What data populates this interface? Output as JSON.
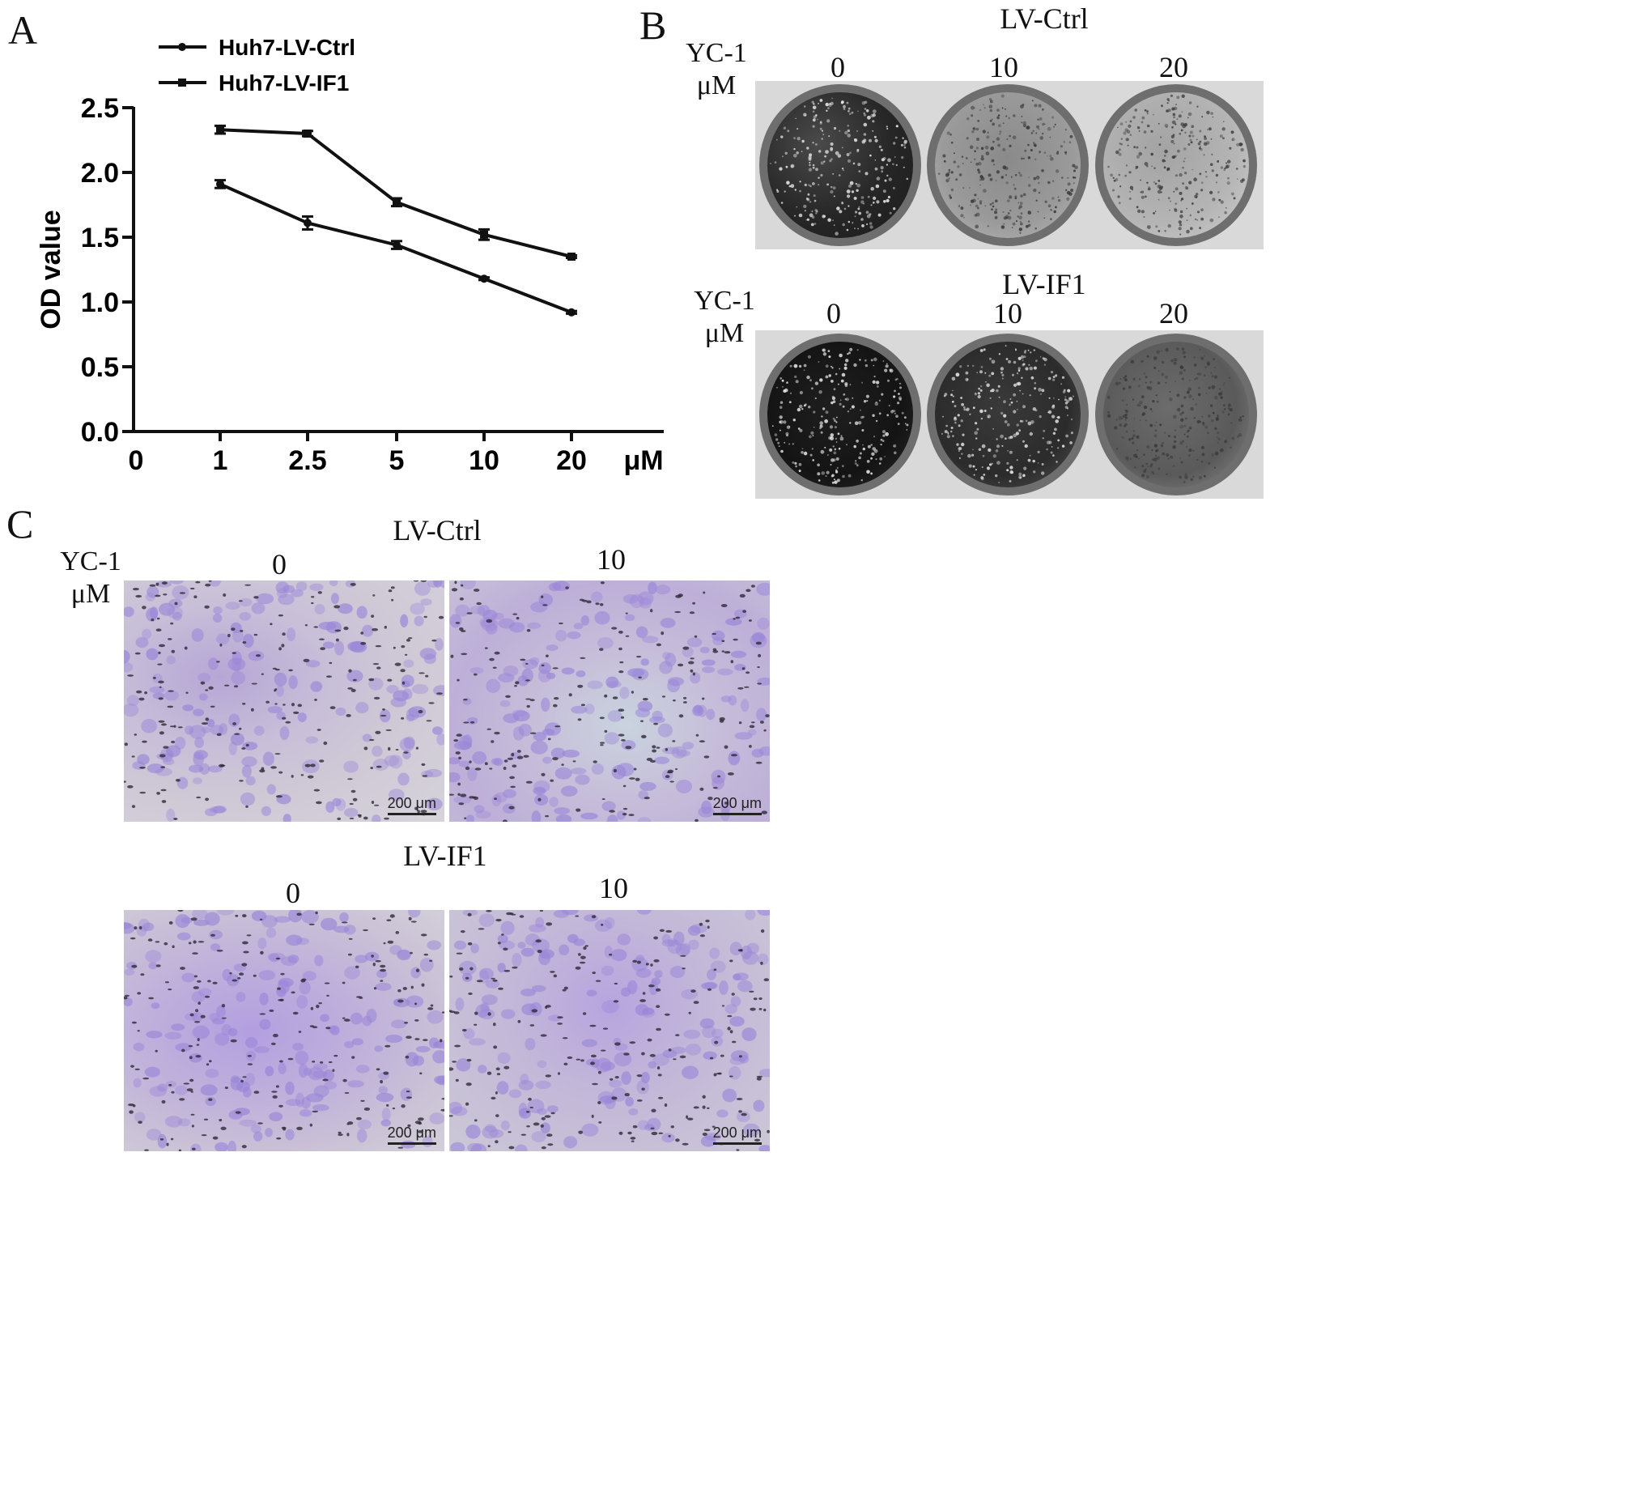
{
  "panel_letters": {
    "a": "A",
    "b": "B",
    "c": "C"
  },
  "chart_data": {
    "type": "line",
    "categories": [
      "0",
      "1",
      "2.5",
      "5",
      "10",
      "20"
    ],
    "x_unit": "μM",
    "ylabel": "OD value",
    "xlabel": "",
    "ylim": [
      0.0,
      2.5
    ],
    "yticks": [
      "0.0",
      "0.5",
      "1.0",
      "1.5",
      "2.0",
      "2.5"
    ],
    "series": [
      {
        "name": "Huh7-LV-Ctrl",
        "marker": "circle",
        "x": [
          "1",
          "2.5",
          "5",
          "10",
          "20"
        ],
        "values": [
          1.91,
          1.61,
          1.44,
          1.18,
          0.92
        ],
        "errors": [
          0.03,
          0.05,
          0.03,
          0.01,
          0.01
        ]
      },
      {
        "name": "Huh7-LV-IF1",
        "marker": "square",
        "x": [
          "1",
          "2.5",
          "5",
          "10",
          "20"
        ],
        "values": [
          2.33,
          2.3,
          1.77,
          1.52,
          1.35
        ],
        "errors": [
          0.03,
          0.02,
          0.03,
          0.04,
          0.01
        ]
      }
    ],
    "legend_position": "top-left",
    "grid": false
  },
  "panel_b": {
    "yc_label_line1": "YC-1",
    "yc_label_line2": "μM",
    "groups": [
      {
        "title": "LV-Ctrl",
        "doses": [
          "0",
          "10",
          "20"
        ]
      },
      {
        "title": "LV-IF1",
        "doses": [
          "0",
          "10",
          "20"
        ]
      }
    ]
  },
  "panel_c": {
    "yc_label_line1": "YC-1",
    "yc_label_line2": "μM",
    "scale_label": "200 μm",
    "groups": [
      {
        "title": "LV-Ctrl",
        "doses": [
          "0",
          "10"
        ]
      },
      {
        "title": "LV-IF1",
        "doses": [
          "0",
          "10"
        ]
      }
    ]
  },
  "colors": {
    "line": "#111111",
    "stain": "#9a86d8",
    "plate_rim": "#6e6e6e"
  }
}
